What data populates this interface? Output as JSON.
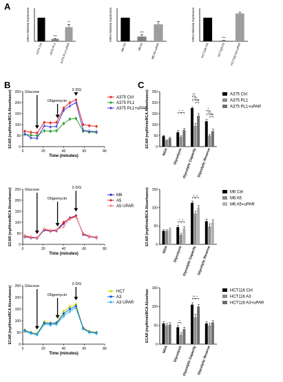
{
  "panel_labels": {
    "a": "A",
    "b": "B",
    "c": "C"
  },
  "chart_data": [
    {
      "type": "bar",
      "id": "a1",
      "ylabel": "mRNA Relative Expression",
      "categories": [
        "A375 Ctrl",
        "A375 PL1",
        "A375 PL1+uPAR"
      ],
      "values": [
        1.0,
        0.1,
        0.6
      ],
      "errors": [
        0,
        0.02,
        0.12
      ],
      "colors": [
        "#000000",
        "#7f7f7f",
        "#9e9e9e"
      ],
      "annotations": [
        "",
        "***",
        "**"
      ],
      "ylim": [
        0,
        1.4
      ]
    },
    {
      "type": "bar",
      "id": "a2",
      "ylabel": "mRNA Relative Expression",
      "categories": [
        "M6 Ctrl",
        "M6 A5",
        "M6 A5+uPAR"
      ],
      "values": [
        1.0,
        0.2,
        0.72
      ],
      "errors": [
        0,
        0.08,
        0.12
      ],
      "colors": [
        "#000000",
        "#7f7f7f",
        "#9e9e9e"
      ],
      "annotations": [
        "",
        "***",
        ""
      ],
      "ylim": [
        0,
        1.4
      ]
    },
    {
      "type": "bar",
      "id": "a3",
      "ylabel": "mRNA Relative Expression",
      "categories": [
        "HCT116 Ctrl",
        "HCT116 A3",
        "HCT116 A3+uPAR"
      ],
      "values": [
        1.0,
        0.03,
        1.18
      ],
      "errors": [
        0,
        0.01,
        0.05
      ],
      "colors": [
        "#000000",
        "#7f7f7f",
        "#9e9e9e"
      ],
      "annotations": [
        "",
        "***",
        ""
      ],
      "ylim": [
        0,
        1.4
      ]
    },
    {
      "type": "line",
      "id": "b1",
      "ylabel": "ECAR (mpH/min/BCA Absorbance)",
      "xlabel": "Time (minutes)",
      "xlim": [
        0,
        80
      ],
      "ylim": [
        0,
        250
      ],
      "xticks": [
        "0",
        "20",
        "40",
        "60",
        "80"
      ],
      "yticks": [
        "0",
        "50",
        "100",
        "150",
        "200",
        "250"
      ],
      "x": [
        2,
        8,
        14,
        21,
        27,
        33,
        40,
        46,
        52,
        59,
        65,
        72
      ],
      "series": [
        {
          "name": "A375 Ctrl",
          "color": "#e52521",
          "values": [
            70,
            65,
            62,
            110,
            108,
            110,
            175,
            200,
            212,
            100,
            95,
            92
          ]
        },
        {
          "name": "A375 PL1",
          "color": "#2ca02c",
          "values": [
            55,
            52,
            50,
            72,
            70,
            72,
            105,
            125,
            128,
            70,
            66,
            65
          ]
        },
        {
          "name": "A375 PL1+uPAR",
          "color": "#3f3fd8",
          "values": [
            60,
            40,
            38,
            95,
            90,
            92,
            165,
            185,
            200,
            75,
            70,
            68
          ]
        }
      ],
      "annotations": [
        "Glucose",
        "Oligomycin",
        "2-DG"
      ]
    },
    {
      "type": "bar",
      "id": "c1",
      "ylabel": "ECAR (mpH/min/BCA Absorbance)",
      "ylim": [
        0,
        250
      ],
      "yticks": [
        "0",
        "50",
        "100",
        "150",
        "200",
        "250"
      ],
      "categories": [
        "NGA",
        "Glycolysis",
        "Glycolytic Capacity",
        "Glycolytic Reserve"
      ],
      "series": [
        {
          "name": "A375 Ctrl",
          "color": "#000000",
          "values": [
            48,
            65,
            175,
            115
          ],
          "errors": [
            3,
            8,
            5,
            8
          ]
        },
        {
          "name": "A375 PL1",
          "color": "#8c8c8c",
          "values": [
            28,
            45,
            95,
            50
          ],
          "errors": [
            3,
            5,
            10,
            5
          ]
        },
        {
          "name": "A375 PL1+uPAR",
          "color": "#6e6e6e",
          "values": [
            38,
            75,
            140,
            70
          ],
          "errors": [
            5,
            8,
            10,
            10
          ]
        }
      ],
      "annotations": [
        "*",
        "*",
        "**",
        "***",
        "****",
        "*",
        "***",
        "***"
      ]
    },
    {
      "type": "line",
      "id": "b2",
      "ylabel": "ECAR (mpH/min/BCA Absorbance)",
      "xlabel": "Time (minutes)",
      "xlim": [
        0,
        80
      ],
      "ylim": [
        0,
        250
      ],
      "xticks": [
        "0",
        "20",
        "40",
        "60",
        "80"
      ],
      "yticks": [
        "0",
        "50",
        "100",
        "150",
        "200",
        "250"
      ],
      "x": [
        2,
        8,
        14,
        21,
        27,
        33,
        40,
        46,
        52,
        59,
        65,
        72
      ],
      "series": [
        {
          "name": "M6",
          "color": "#2222cc",
          "values": [
            35,
            30,
            28,
            65,
            60,
            62,
            95,
            120,
            130,
            45,
            35,
            30
          ]
        },
        {
          "name": "A5",
          "color": "#e52521",
          "values": [
            38,
            32,
            30,
            68,
            62,
            64,
            100,
            118,
            128,
            48,
            36,
            32
          ]
        },
        {
          "name": "A5 UPAR",
          "color": "#f08080",
          "values": [
            40,
            34,
            30,
            70,
            64,
            66,
            80,
            115,
            125,
            50,
            38,
            33
          ]
        }
      ],
      "annotations": [
        "Glucose",
        "Oligomycin",
        "2-DG"
      ]
    },
    {
      "type": "bar",
      "id": "c2",
      "ylabel": "ECAR (mpH/min/BCA Absorbance)",
      "ylim": [
        0,
        150
      ],
      "yticks": [
        "0",
        "50",
        "100",
        "150"
      ],
      "categories": [
        "NGA",
        "Glycolysis",
        "Glycolytic Capacity",
        "Glycolytic Reserve"
      ],
      "series": [
        {
          "name": "M6 Ctrl",
          "color": "#000000",
          "values": [
            37,
            47,
            113,
            63
          ],
          "errors": [
            3,
            5,
            5,
            6
          ]
        },
        {
          "name": "M6 A5",
          "color": "#8c8c8c",
          "values": [
            37,
            26,
            84,
            49
          ],
          "errors": [
            3,
            4,
            6,
            7
          ]
        },
        {
          "name": "M6 A5+uPAR",
          "color": "#b0b0b0",
          "values": [
            40,
            43,
            100,
            60
          ],
          "errors": [
            4,
            5,
            5,
            7
          ]
        }
      ],
      "annotations": [
        "*",
        "*",
        "*",
        "*"
      ]
    },
    {
      "type": "line",
      "id": "b3",
      "ylabel": "ECAR (mpH/min/BCA Absorbance)",
      "xlabel": "Time (minutes)",
      "xlim": [
        0,
        80
      ],
      "ylim": [
        0,
        250
      ],
      "xticks": [
        "0",
        "20",
        "40",
        "60",
        "80"
      ],
      "yticks": [
        "0",
        "50",
        "100",
        "150",
        "200",
        "250"
      ],
      "x": [
        2,
        8,
        14,
        21,
        27,
        33,
        40,
        46,
        52,
        59,
        65,
        72
      ],
      "series": [
        {
          "name": "HCT",
          "color": "#d4d400",
          "values": [
            60,
            50,
            45,
            95,
            90,
            92,
            140,
            160,
            170,
            70,
            55,
            50
          ]
        },
        {
          "name": "A3",
          "color": "#0055cc",
          "values": [
            58,
            48,
            42,
            90,
            88,
            90,
            130,
            150,
            162,
            68,
            52,
            48
          ]
        },
        {
          "name": "A3 UPAR",
          "color": "#30b0e0",
          "values": [
            55,
            46,
            40,
            85,
            82,
            85,
            120,
            140,
            155,
            65,
            50,
            46
          ]
        }
      ],
      "annotations": [
        "Glucose",
        "Oligomycin",
        "2-DG"
      ]
    },
    {
      "type": "bar",
      "id": "c3",
      "ylabel": "ECAR (mpH/min/BCA Absorban",
      "ylim": [
        0,
        150
      ],
      "yticks": [
        "0",
        "50",
        "100",
        "150"
      ],
      "categories": [
        "NGA",
        "Glycolysis",
        "Glycolytic Capacity",
        "Glycolytic Reserve"
      ],
      "series": [
        {
          "name": "HCT116 Ctrl",
          "color": "#000000",
          "values": [
            55,
            45,
            105,
            55
          ],
          "errors": [
            5,
            5,
            5,
            5
          ]
        },
        {
          "name": "HCT116 A3",
          "color": "#8c8c8c",
          "values": [
            50,
            25,
            72,
            50
          ],
          "errors": [
            5,
            5,
            8,
            5
          ]
        },
        {
          "name": "HCT116 A3+uPAR",
          "color": "#6e6e6e",
          "values": [
            52,
            40,
            100,
            58
          ],
          "errors": [
            5,
            5,
            5,
            5
          ]
        }
      ],
      "annotations": [
        "*",
        "**",
        "*"
      ]
    }
  ]
}
